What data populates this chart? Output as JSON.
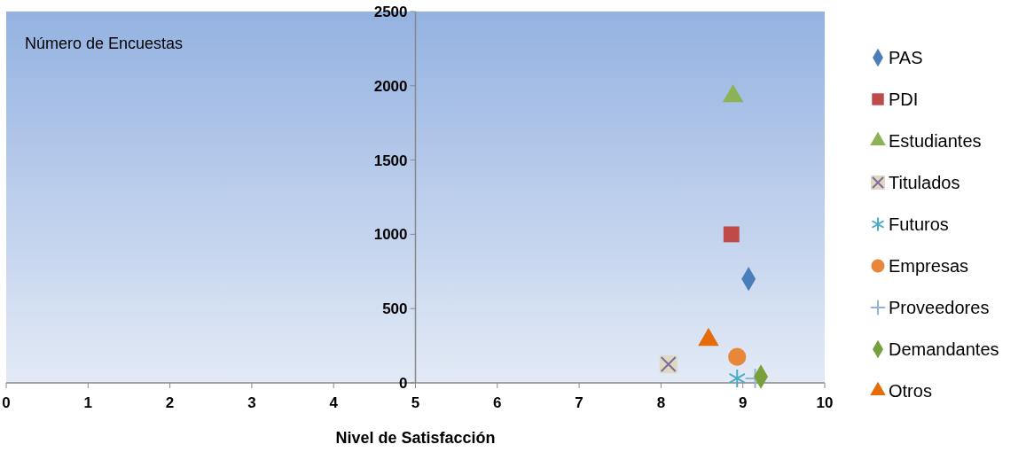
{
  "chart_data": {
    "type": "scatter",
    "xlabel": "Nivel de Satisfacción",
    "ylabel": "Número de Encuestas",
    "xlim": [
      0,
      10
    ],
    "xticks": [
      0,
      1,
      2,
      3,
      4,
      5,
      6,
      7,
      8,
      9,
      10
    ],
    "ylim": [
      0,
      2500
    ],
    "yticks": [
      0,
      500,
      1000,
      1500,
      2000,
      2500
    ],
    "grid": false,
    "legend": "right",
    "series": [
      {
        "name": "PAS",
        "color": "#4a7ebb",
        "marker": "diamond",
        "x": [
          9.07
        ],
        "values": [
          700
        ]
      },
      {
        "name": "PDI",
        "color": "#be4b48",
        "marker": "square",
        "x": [
          8.86
        ],
        "values": [
          1000
        ]
      },
      {
        "name": "Estudiantes",
        "color": "#8db255",
        "marker": "triangle",
        "x": [
          8.88
        ],
        "values": [
          1930
        ]
      },
      {
        "name": "Titulados",
        "color": "#7f6a9f",
        "marker": "cross",
        "x": [
          8.09
        ],
        "values": [
          125
        ]
      },
      {
        "name": "Futuros",
        "color": "#4bacc6",
        "marker": "cross",
        "x": [
          8.93
        ],
        "values": [
          30
        ]
      },
      {
        "name": "Empresas",
        "color": "#e8873a",
        "marker": "circle",
        "x": [
          8.93
        ],
        "values": [
          175
        ]
      },
      {
        "name": "Proveedores",
        "color": "#95b3d7",
        "marker": "cross",
        "x": [
          9.15
        ],
        "values": [
          30
        ]
      },
      {
        "name": "Demandantes",
        "color": "#77a03a",
        "marker": "diamond",
        "x": [
          9.22
        ],
        "values": [
          42
        ]
      },
      {
        "name": "Otros",
        "color": "#e46c0a",
        "marker": "triangle",
        "x": [
          8.58
        ],
        "values": [
          290
        ]
      }
    ]
  }
}
